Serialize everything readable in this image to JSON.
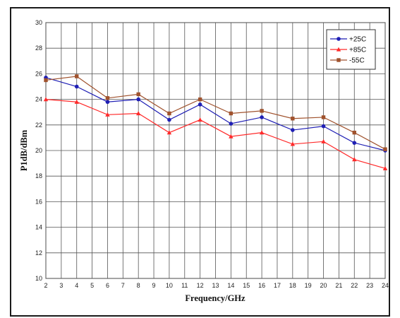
{
  "chart_data": {
    "type": "line",
    "xlabel": "Frequency/GHz",
    "ylabel": "P1dB/dBm",
    "xlim": [
      2,
      24
    ],
    "ylim": [
      10,
      30
    ],
    "x_ticks": [
      2,
      3,
      4,
      5,
      6,
      7,
      8,
      9,
      10,
      11,
      12,
      13,
      14,
      15,
      16,
      17,
      18,
      19,
      20,
      21,
      22,
      23,
      24
    ],
    "y_ticks": [
      10,
      12,
      14,
      16,
      18,
      20,
      22,
      24,
      26,
      28,
      30
    ],
    "grid": true,
    "legend_position": "top-right",
    "x": [
      2,
      4,
      6,
      8,
      10,
      12,
      14,
      16,
      18,
      20,
      22,
      24
    ],
    "series": [
      {
        "name": "+25C",
        "color": "#1f1fb4",
        "marker": "circle",
        "values": [
          25.7,
          25.0,
          23.8,
          24.0,
          22.4,
          23.6,
          22.1,
          22.6,
          21.6,
          21.9,
          20.6,
          20.0
        ]
      },
      {
        "name": "+85C",
        "color": "#ff2a2a",
        "marker": "triangle",
        "values": [
          24.0,
          23.8,
          22.8,
          22.9,
          21.4,
          22.4,
          21.1,
          21.4,
          20.5,
          20.7,
          19.3,
          18.6
        ]
      },
      {
        "name": "-55C",
        "color": "#a0522d",
        "marker": "square",
        "values": [
          25.5,
          25.8,
          24.1,
          24.4,
          22.9,
          24.0,
          22.9,
          23.1,
          22.5,
          22.6,
          21.4,
          20.1
        ]
      }
    ]
  }
}
